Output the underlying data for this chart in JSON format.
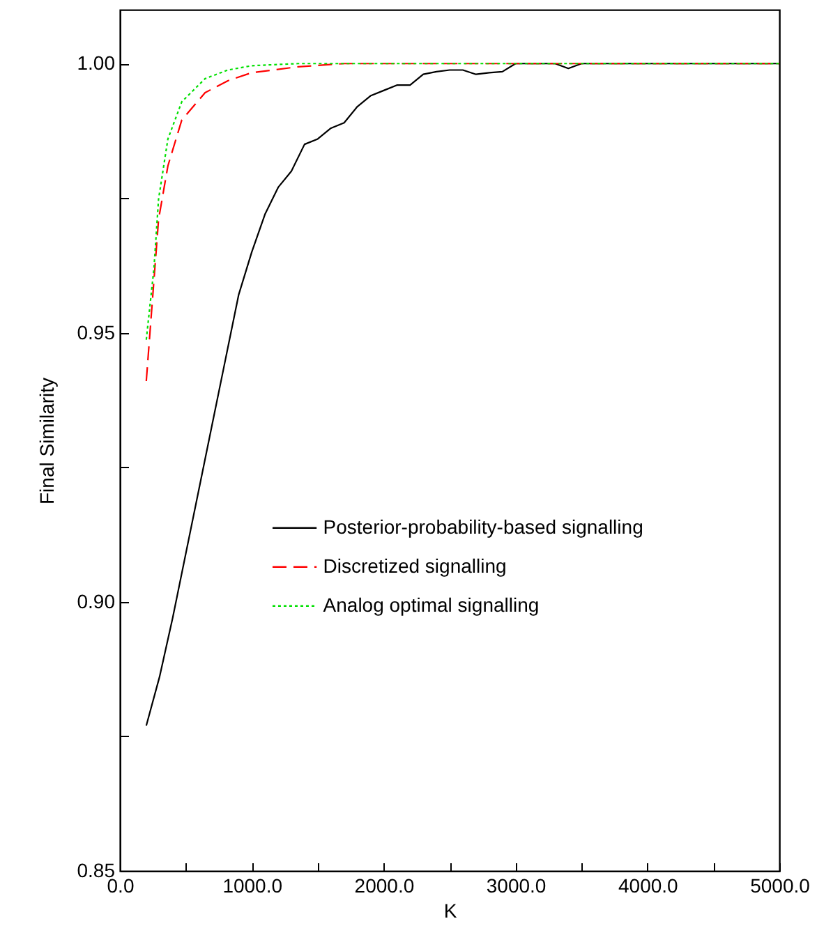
{
  "chart_data": {
    "type": "line",
    "xlabel": "K",
    "ylabel": "Final  Similarity",
    "xlim": [
      0,
      5000
    ],
    "ylim": [
      0.85,
      1.01
    ],
    "xticks": [
      {
        "value": 0,
        "label": "0.0"
      },
      {
        "value": 500,
        "label": null
      },
      {
        "value": 1000,
        "label": "1000.0"
      },
      {
        "value": 1500,
        "label": null
      },
      {
        "value": 2000,
        "label": "2000.0"
      },
      {
        "value": 2500,
        "label": null
      },
      {
        "value": 3000,
        "label": "3000.0"
      },
      {
        "value": 3500,
        "label": null
      },
      {
        "value": 4000,
        "label": "4000.0"
      },
      {
        "value": 4500,
        "label": null
      },
      {
        "value": 5000,
        "label": "5000.0"
      }
    ],
    "yticks": [
      0.85,
      {
        "value": 0.875,
        "label": null
      },
      {
        "value": 0.9,
        "label": "0.90"
      },
      {
        "value": 0.925,
        "label": null
      },
      0.95,
      {
        "value": 0.975,
        "label": null
      },
      {
        "value": 1,
        "label": "1.00"
      }
    ],
    "grid": false,
    "legend": "right",
    "marker": "none",
    "series": [
      {
        "name": "Posterior-probability-based signalling",
        "color": "#000000",
        "line_style": "solid",
        "x": [
          200,
          300,
          400,
          500,
          600,
          700,
          800,
          900,
          1000,
          1100,
          1200,
          1300,
          1400,
          1500,
          1600,
          1700,
          1800,
          1900,
          2000,
          2100,
          2200,
          2300,
          2400,
          2500,
          2600,
          2700,
          2800,
          2900,
          3000,
          3100,
          3200,
          3300,
          3400,
          3500,
          4000,
          4500,
          5000
        ],
        "values": [
          0.877,
          0.886,
          0.897,
          0.909,
          0.921,
          0.933,
          0.945,
          0.957,
          0.965,
          0.972,
          0.977,
          0.98,
          0.985,
          0.986,
          0.988,
          0.989,
          0.992,
          0.994,
          0.995,
          0.996,
          0.996,
          0.998,
          0.9985,
          0.9988,
          0.9988,
          0.998,
          0.9983,
          0.9985,
          1.0,
          1.0,
          1.0,
          1.0,
          0.9991,
          1.0,
          1.0,
          1.0,
          1.0
        ]
      },
      {
        "name": "Discretized signalling",
        "color": "#ff0000",
        "line_style": "dashed",
        "x": [
          200,
          293,
          364,
          469,
          646,
          818,
          998,
          1350,
          1700,
          2500,
          5000
        ],
        "values": [
          0.941,
          0.971,
          0.981,
          0.9895,
          0.9946,
          0.9968,
          0.9983,
          0.9994,
          1.0,
          1.0,
          1.0
        ]
      },
      {
        "name": "Analog optimal signalling",
        "color": "#00e000",
        "line_style": "dotted",
        "x": [
          200,
          258,
          293,
          364,
          469,
          646,
          818,
          998,
          1350,
          2500,
          5000
        ],
        "values": [
          0.9487,
          0.9619,
          0.9748,
          0.986,
          0.9929,
          0.9972,
          0.9988,
          0.9996,
          1.0,
          1.0,
          1.0
        ]
      }
    ]
  }
}
